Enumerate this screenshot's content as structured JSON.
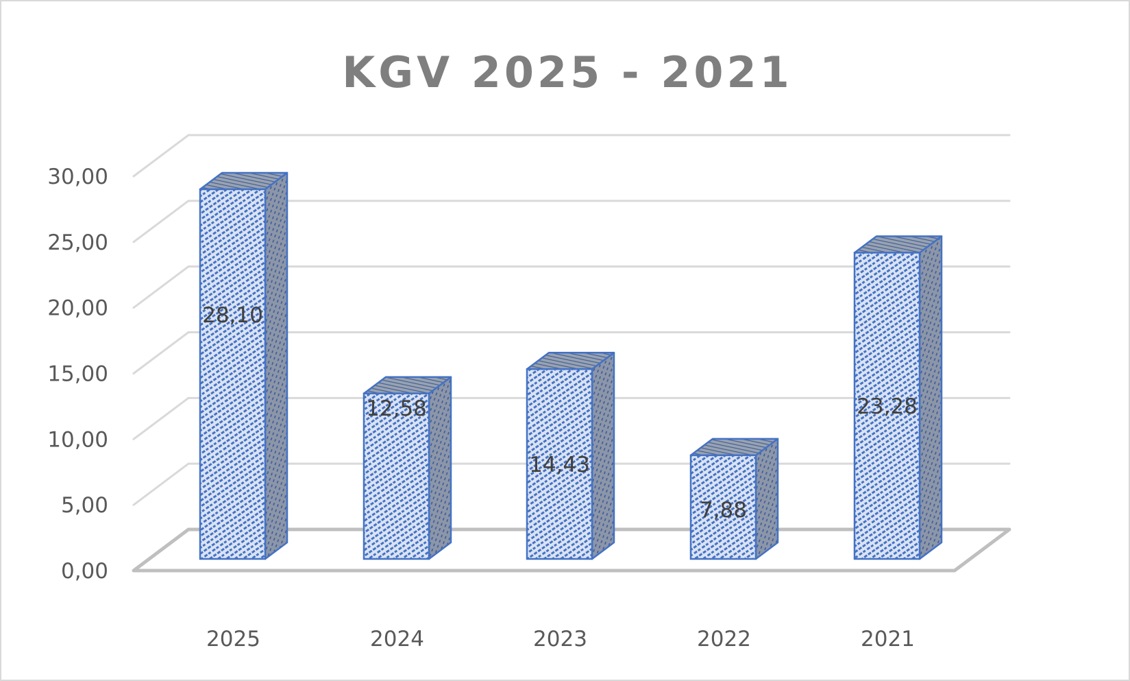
{
  "chart_data": {
    "type": "bar",
    "subtype": "3d-column",
    "title": "KGV 2025 - 2021",
    "xlabel": "",
    "ylabel": "",
    "categories": [
      "2025",
      "2024",
      "2023",
      "2022",
      "2021"
    ],
    "values": [
      28.1,
      12.58,
      14.43,
      7.88,
      23.28
    ],
    "value_labels": [
      "28,10",
      "12,58",
      "14,43",
      "7,88",
      "23,28"
    ],
    "ylim": [
      0,
      30
    ],
    "y_ticks": [
      0,
      5,
      10,
      15,
      20,
      25,
      30
    ],
    "y_tick_labels": [
      "0,00",
      "5,00",
      "10,00",
      "15,00",
      "20,00",
      "25,00",
      "30,00"
    ],
    "grid": true,
    "legend": "none",
    "colors": {
      "bar_face": "#dae3f3",
      "bar_pattern": "#4472c4",
      "bar_outline": "#4472c4",
      "bar_side": "#8497b0",
      "grid": "#d9d9d9",
      "floor": "#bfbfbf",
      "title": "#7f7f7f",
      "tick_text": "#595959"
    }
  }
}
